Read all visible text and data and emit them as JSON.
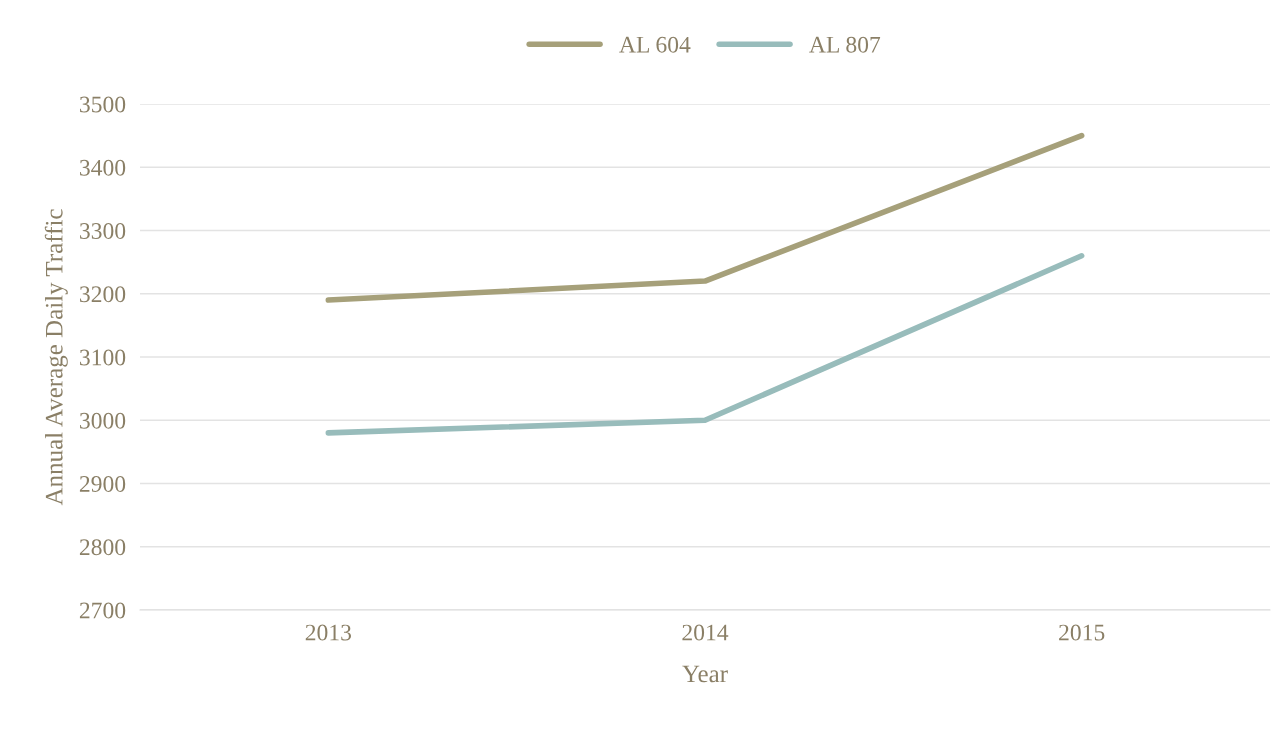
{
  "chart_data": {
    "type": "line",
    "xlabel": "Year",
    "ylabel": "Annual Average Daily Traffic",
    "categories": [
      "2013",
      "2014",
      "2015"
    ],
    "series": [
      {
        "name": "AL 604",
        "color": "#a6a07a",
        "values": [
          3190,
          3220,
          3450
        ]
      },
      {
        "name": "AL 807",
        "color": "#98bcbb",
        "values": [
          2980,
          3000,
          3260
        ]
      }
    ],
    "ylim": [
      2700,
      3500
    ],
    "yticks": [
      2700,
      2800,
      2900,
      3000,
      3100,
      3200,
      3300,
      3400,
      3500
    ],
    "grid": "y",
    "legend": "top",
    "marker": "none",
    "line_style": "solid"
  }
}
